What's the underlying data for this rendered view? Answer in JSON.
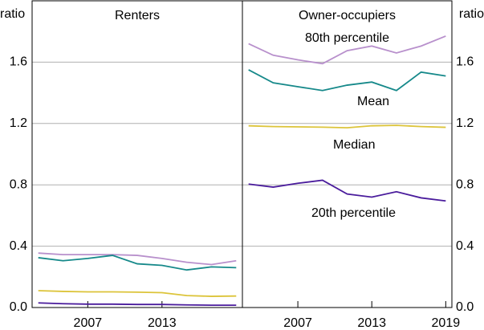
{
  "chart_data": [
    {
      "type": "line",
      "title": "Renters",
      "y_label": "ratio",
      "x": [
        2003,
        2005,
        2007,
        2009,
        2011,
        2013,
        2015,
        2017,
        2019
      ],
      "xlim": [
        2002.5,
        2019.5
      ],
      "xticks": [
        2007,
        2013
      ],
      "ylim": [
        0,
        2
      ],
      "yticks": [
        {
          "value": 0,
          "label": "0.0"
        },
        0.4,
        0.8,
        1.2,
        1.6
      ],
      "grid": true,
      "series": [
        {
          "color": "#b890cc",
          "values": [
            0.355,
            0.345,
            0.345,
            0.345,
            0.34,
            0.32,
            0.295,
            0.28,
            0.305
          ]
        },
        {
          "color": "#16898a",
          "values": [
            0.325,
            0.305,
            0.32,
            0.34,
            0.285,
            0.275,
            0.245,
            0.265,
            0.26
          ]
        },
        {
          "color": "#dcc43a",
          "values": [
            0.11,
            0.105,
            0.102,
            0.102,
            0.1,
            0.097,
            0.078,
            0.073,
            0.075
          ]
        },
        {
          "color": "#4a1c9c",
          "values": [
            0.03,
            0.025,
            0.022,
            0.022,
            0.02,
            0.02,
            0.017,
            0.015,
            0.015
          ]
        }
      ]
    },
    {
      "type": "line",
      "title": "Owner-occupiers",
      "y_label": "ratio",
      "x": [
        2003,
        2005,
        2007,
        2009,
        2011,
        2013,
        2015,
        2017,
        2019
      ],
      "xlim": [
        2002.5,
        2019.5
      ],
      "xticks": [
        2007,
        2013,
        2019
      ],
      "ylim": [
        0,
        2
      ],
      "yticks": [
        {
          "value": 0,
          "label": "0.0"
        },
        0.4,
        0.8,
        1.2,
        1.6
      ],
      "grid": true,
      "series": [
        {
          "name": "80th percentile",
          "color": "#b890cc",
          "values": [
            1.72,
            1.645,
            1.615,
            1.59,
            1.675,
            1.705,
            1.66,
            1.705,
            1.77
          ]
        },
        {
          "name": "Mean",
          "color": "#16898a",
          "values": [
            1.55,
            1.465,
            1.44,
            1.415,
            1.45,
            1.47,
            1.415,
            1.535,
            1.51
          ]
        },
        {
          "name": "Median",
          "color": "#dcc43a",
          "values": [
            1.185,
            1.18,
            1.178,
            1.176,
            1.172,
            1.185,
            1.188,
            1.18,
            1.175
          ]
        },
        {
          "name": "20th percentile",
          "color": "#4a1c9c",
          "values": [
            0.805,
            0.785,
            0.81,
            0.83,
            0.74,
            0.72,
            0.755,
            0.715,
            0.695
          ]
        }
      ]
    }
  ]
}
